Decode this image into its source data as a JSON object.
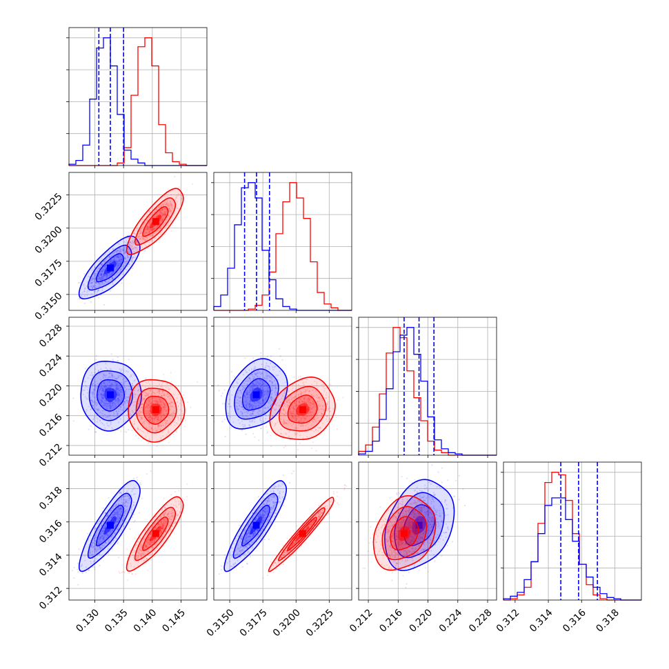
{
  "chart_data": {
    "type": "corner",
    "grid": true,
    "colors": {
      "blue": "#0000ff",
      "red": "#ff0000"
    },
    "parameters": [
      {
        "range": [
          0.1255,
          0.1495
        ],
        "ticks": [
          0.13,
          0.135,
          0.14,
          0.145
        ],
        "tick_labels": [
          "0.130",
          "0.135",
          "0.140",
          "0.145"
        ]
      },
      {
        "range": [
          0.3138,
          0.3242
        ],
        "ticks": [
          0.315,
          0.3175,
          0.32,
          0.3225
        ],
        "tick_labels": [
          "0.3150",
          "0.3175",
          "0.3200",
          "0.3225"
        ]
      },
      {
        "range": [
          0.2107,
          0.2292
        ],
        "ticks": [
          0.212,
          0.216,
          0.22,
          0.224,
          0.228
        ],
        "tick_labels": [
          "0.212",
          "0.216",
          "0.220",
          "0.224",
          "0.228"
        ]
      },
      {
        "range": [
          0.3113,
          0.3196
        ],
        "ticks": [
          0.312,
          0.314,
          0.316,
          0.318
        ],
        "tick_labels": [
          "0.312",
          "0.314",
          "0.316",
          "0.318"
        ]
      }
    ],
    "series": [
      {
        "color": "blue",
        "mean": [
          0.1327,
          0.317,
          0.2188,
          0.3158
        ],
        "std": [
          0.00215,
          0.00095,
          0.0019,
          0.0011
        ],
        "corr": {
          "0-1": 0.75,
          "0-2": 0.0,
          "1-2": 0.3,
          "0-3": 0.85,
          "1-3": 0.88,
          "2-3": 0.3
        },
        "quantiles": [
          [
            0.1307,
            0.1327,
            0.135
          ],
          [
            0.31612,
            0.31702,
            0.318
          ],
          [
            0.2168,
            0.2188,
            0.2208
          ],
          [
            0.31475,
            0.31582,
            0.31695
          ]
        ]
      },
      {
        "color": "red",
        "mean": [
          0.1406,
          0.3205,
          0.2168,
          0.3153
        ],
        "std": [
          0.002,
          0.001,
          0.0017,
          0.0009
        ],
        "corr": {
          "0-1": 0.8,
          "0-2": 0.0,
          "1-2": 0.2,
          "0-3": 0.85,
          "1-3": 0.97,
          "2-3": 0.25
        }
      }
    ],
    "histograms": [
      {
        "bins": [
          0.1255,
          0.1495,
          20
        ],
        "blue": [
          1,
          4,
          16,
          52,
          92,
          100,
          78,
          40,
          12,
          5,
          2,
          0,
          0,
          0,
          0,
          0,
          0,
          0,
          0,
          0
        ],
        "red": [
          0,
          0,
          0,
          0,
          0,
          0,
          0,
          2,
          14,
          55,
          93,
          100,
          78,
          32,
          10,
          3,
          1,
          0,
          0,
          0
        ]
      },
      {
        "bins": [
          0.3138,
          0.3242,
          20
        ],
        "blue": [
          3,
          12,
          33,
          67,
          96,
          100,
          88,
          47,
          24,
          9,
          3,
          1,
          0,
          0,
          0,
          0,
          0,
          0,
          0,
          0
        ],
        "red": [
          0,
          0,
          0,
          0,
          0,
          1,
          4,
          12,
          30,
          60,
          85,
          100,
          88,
          72,
          38,
          14,
          5,
          2,
          0,
          0
        ]
      },
      {
        "bins": [
          0.2107,
          0.2292,
          20
        ],
        "blue": [
          1,
          3,
          11,
          28,
          52,
          81,
          94,
          100,
          79,
          58,
          30,
          12,
          5,
          2,
          1,
          0,
          0,
          0,
          0,
          0
        ],
        "red": [
          3,
          8,
          22,
          48,
          80,
          100,
          92,
          66,
          45,
          27,
          11,
          4,
          2,
          0,
          0,
          0,
          0,
          0,
          0,
          0
        ]
      },
      {
        "bins": [
          0.3113,
          0.3196,
          20
        ],
        "blue": [
          1,
          3,
          6,
          16,
          30,
          52,
          74,
          80,
          80,
          63,
          46,
          28,
          18,
          10,
          5,
          2,
          1,
          0,
          0,
          0
        ],
        "red": [
          0,
          1,
          4,
          10,
          30,
          60,
          92,
          100,
          98,
          78,
          52,
          28,
          12,
          4,
          1,
          0,
          0,
          0,
          0,
          0
        ]
      }
    ]
  }
}
